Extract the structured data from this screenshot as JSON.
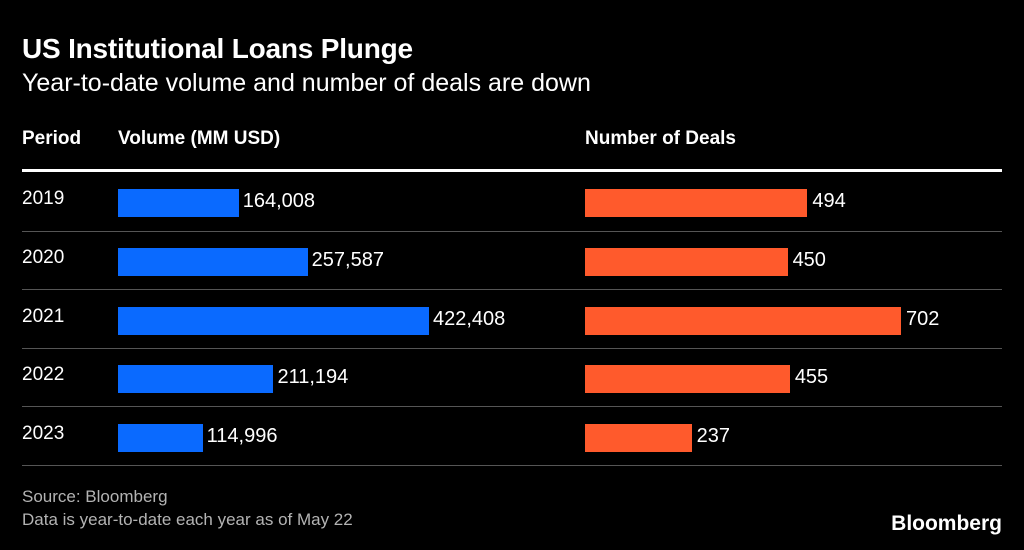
{
  "title": "US Institutional Loans Plunge",
  "subtitle": "Year-to-date volume and number of deals are down",
  "headers": {
    "period": "Period",
    "volume": "Volume (MM USD)",
    "deals": "Number of Deals"
  },
  "source": "Source: Bloomberg",
  "note": "Data is year-to-date each year as of May 22",
  "logo": "Bloomberg",
  "colors": {
    "volume": "#0a6aff",
    "deals": "#ff5a2c",
    "background": "#000000"
  },
  "chart_data": {
    "type": "bar",
    "orientation": "horizontal",
    "categories": [
      "2019",
      "2020",
      "2021",
      "2022",
      "2023"
    ],
    "series": [
      {
        "name": "Volume (MM USD)",
        "values": [
          164008,
          257587,
          422408,
          211194,
          114996
        ],
        "labels": [
          "164,008",
          "257,587",
          "422,408",
          "211,194",
          "114,996"
        ]
      },
      {
        "name": "Number of Deals",
        "values": [
          494,
          450,
          702,
          455,
          237
        ],
        "labels": [
          "494",
          "450",
          "702",
          "455",
          "237"
        ]
      }
    ]
  }
}
